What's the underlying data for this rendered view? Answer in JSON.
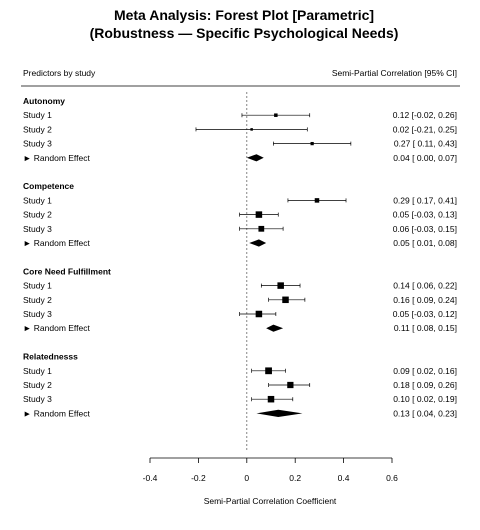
{
  "chart_data": {
    "type": "forest",
    "title": [
      "Meta Analysis: Forest Plot [Parametric]",
      "(Robustness — Specific Psychological Needs)"
    ],
    "left_header": "Predictors by study",
    "right_header": "Semi-Partial Correlation [95% CI]",
    "xlabel": "Semi-Partial Correlation Coefficient",
    "xlim": [
      -0.4,
      0.6
    ],
    "xticks": [
      -0.4,
      -0.2,
      0,
      0.2,
      0.4,
      0.6
    ],
    "xtick_labels": [
      "-0.4",
      "-0.2",
      "0",
      "0.2",
      "0.4",
      "0.6"
    ],
    "reference_line": 0,
    "groups": [
      {
        "name": "Autonomy",
        "studies": [
          {
            "label": "Study 1",
            "estimate": 0.12,
            "lower": -0.02,
            "upper": 0.26,
            "text": "0.12 [-0.02, 0.26]",
            "weight": 0.3
          },
          {
            "label": "Study 2",
            "estimate": 0.02,
            "lower": -0.21,
            "upper": 0.25,
            "text": "0.02 [-0.21, 0.25]",
            "weight": 0.1
          },
          {
            "label": "Study 3",
            "estimate": 0.27,
            "lower": 0.11,
            "upper": 0.43,
            "text": "0.27 [ 0.11, 0.43]",
            "weight": 0.25
          }
        ],
        "summary": {
          "label": "Random Effect",
          "estimate": 0.04,
          "lower": 0.0,
          "upper": 0.07,
          "text": "0.04 [ 0.00, 0.07]"
        }
      },
      {
        "name": "Competence",
        "studies": [
          {
            "label": "Study 1",
            "estimate": 0.29,
            "lower": 0.17,
            "upper": 0.41,
            "text": "0.29 [ 0.17, 0.41]",
            "weight": 0.5
          },
          {
            "label": "Study 2",
            "estimate": 0.05,
            "lower": -0.03,
            "upper": 0.13,
            "text": "0.05 [-0.03, 0.13]",
            "weight": 0.9
          },
          {
            "label": "Study 3",
            "estimate": 0.06,
            "lower": -0.03,
            "upper": 0.15,
            "text": "0.06 [-0.03, 0.15]",
            "weight": 0.75
          }
        ],
        "summary": {
          "label": "Random Effect",
          "estimate": 0.05,
          "lower": 0.01,
          "upper": 0.08,
          "text": "0.05 [ 0.01, 0.08]"
        }
      },
      {
        "name": "Core Need Fulfillment",
        "studies": [
          {
            "label": "Study 1",
            "estimate": 0.14,
            "lower": 0.06,
            "upper": 0.22,
            "text": "0.14 [ 0.06, 0.22]",
            "weight": 0.9
          },
          {
            "label": "Study 2",
            "estimate": 0.16,
            "lower": 0.09,
            "upper": 0.24,
            "text": "0.16 [ 0.09, 0.24]",
            "weight": 0.9
          },
          {
            "label": "Study 3",
            "estimate": 0.05,
            "lower": -0.03,
            "upper": 0.12,
            "text": "0.05 [-0.03, 0.12]",
            "weight": 0.9
          }
        ],
        "summary": {
          "label": "Random Effect",
          "estimate": 0.11,
          "lower": 0.08,
          "upper": 0.15,
          "text": "0.11 [ 0.08, 0.15]"
        }
      },
      {
        "name": "Relatednesss",
        "studies": [
          {
            "label": "Study 1",
            "estimate": 0.09,
            "lower": 0.02,
            "upper": 0.16,
            "text": "0.09 [ 0.02, 0.16]",
            "weight": 0.95
          },
          {
            "label": "Study 2",
            "estimate": 0.18,
            "lower": 0.09,
            "upper": 0.26,
            "text": "0.18 [ 0.09, 0.26]",
            "weight": 0.85
          },
          {
            "label": "Study 3",
            "estimate": 0.1,
            "lower": 0.02,
            "upper": 0.19,
            "text": "0.10 [ 0.02, 0.19]",
            "weight": 0.9
          }
        ],
        "summary": {
          "label": "Random Effect",
          "estimate": 0.13,
          "lower": 0.04,
          "upper": 0.23,
          "text": "0.13 [ 0.04, 0.23]"
        }
      }
    ]
  }
}
